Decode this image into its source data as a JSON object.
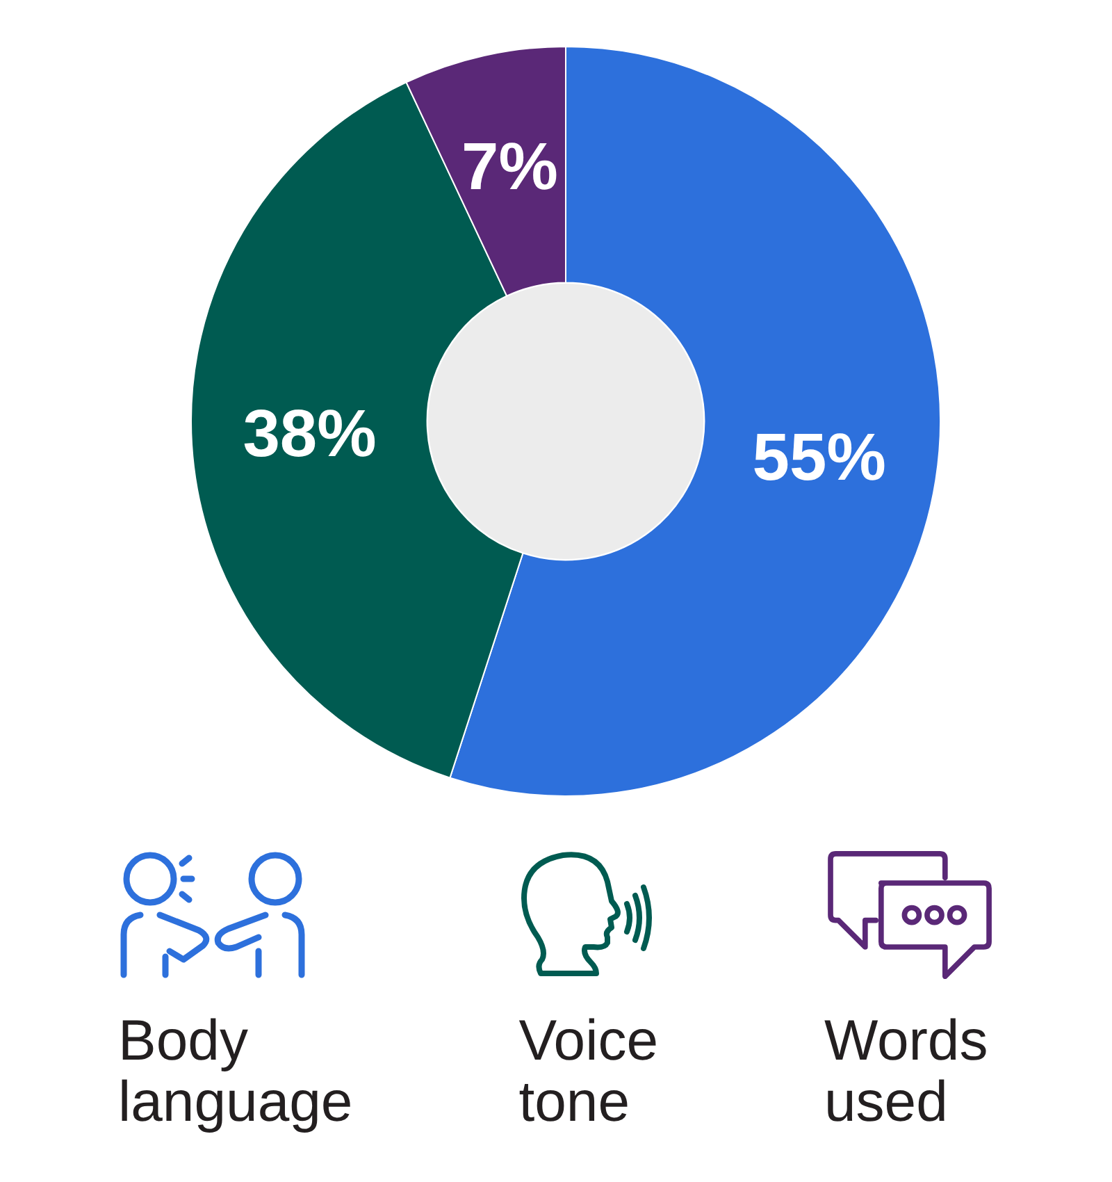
{
  "chart_data": {
    "type": "donut",
    "categories": [
      "Body language",
      "Voice tone",
      "Words used"
    ],
    "values": [
      55,
      38,
      7
    ],
    "colors": [
      "#2d70dc",
      "#005b51",
      "#5a2877"
    ],
    "value_labels": [
      "55%",
      "38%",
      "7%"
    ],
    "legend": "bottom"
  }
}
